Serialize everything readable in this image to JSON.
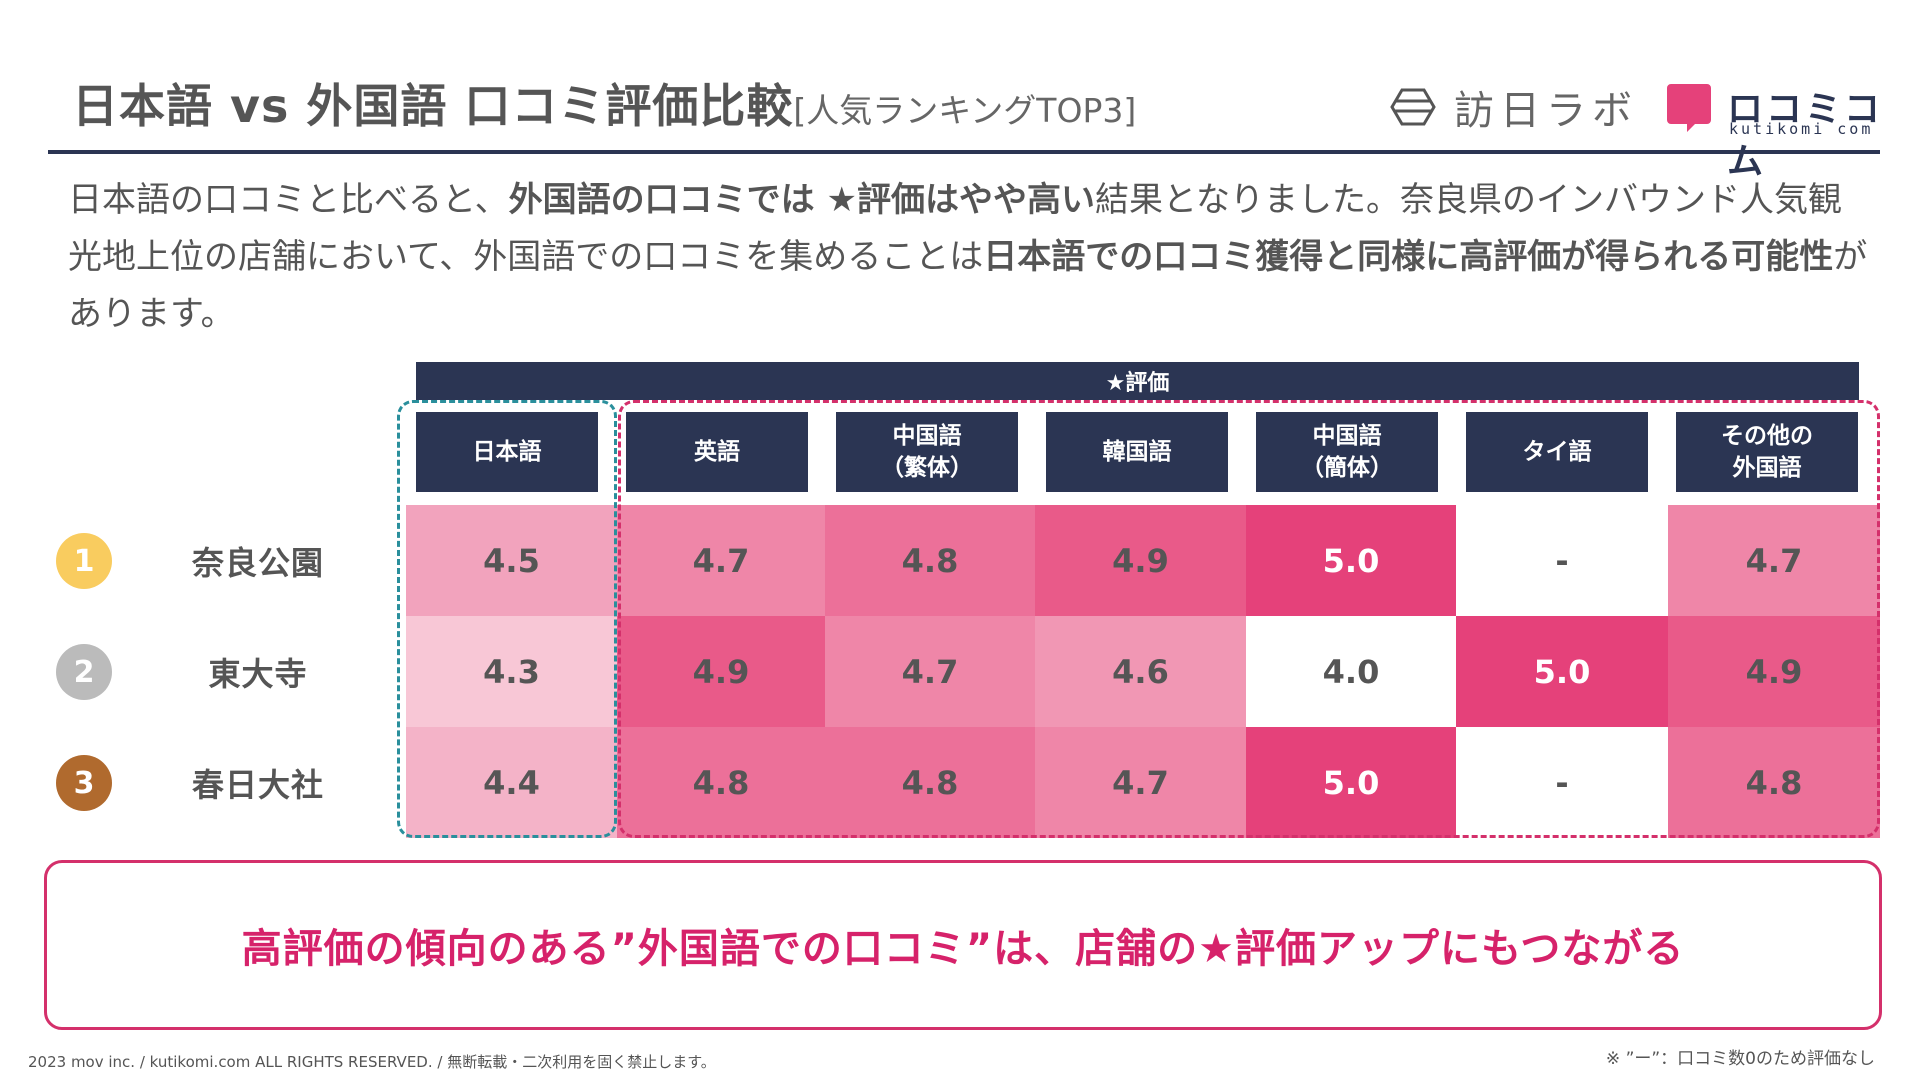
{
  "header": {
    "title": "日本語 vs 外国語 口コミ評価比較",
    "subtitle": "[人気ランキングTOP3]",
    "logo_houjin": "訪日ラボ",
    "logo_kuchikomi": "ロコミコム",
    "logo_kuchikomi_en": "kutikomi com"
  },
  "intro": {
    "p1": "日本語の口コミと比べると、",
    "b1": "外国語の口コミでは ★評価はやや高い",
    "p2": "結果となりました。奈良県のインバウンド人気観光地上位の店舗において、外国語での口コミを集めることは",
    "b2": "日本語での口コミ獲得と同様に高評価が得られる可能性",
    "p3": "があります。"
  },
  "table": {
    "group_header": "★評価",
    "columns": [
      "日本語",
      "英語",
      "中国語\n（繁体）",
      "韓国語",
      "中国語\n（簡体）",
      "タイ語",
      "その他の\n外国語"
    ],
    "rows": [
      {
        "rank": "1",
        "name": "奈良公園",
        "values": [
          "4.5",
          "4.7",
          "4.8",
          "4.9",
          "5.0",
          "-",
          "4.7"
        ]
      },
      {
        "rank": "2",
        "name": "東大寺",
        "values": [
          "4.3",
          "4.9",
          "4.7",
          "4.6",
          "4.0",
          "5.0",
          "4.9"
        ]
      },
      {
        "rank": "3",
        "name": "春日大社",
        "values": [
          "4.4",
          "4.8",
          "4.8",
          "4.7",
          "5.0",
          "-",
          "4.8"
        ]
      }
    ],
    "cell_colors": [
      [
        "#f2a3bd",
        "#ef86a8",
        "#ec7099",
        "#e95a89",
        "#e5417a",
        "#ffffff",
        "#ef86a8"
      ],
      [
        "#f8c7d6",
        "#e95a89",
        "#ef86a8",
        "#f197b4",
        "#ffffff",
        "#e5417a",
        "#e95a89"
      ],
      [
        "#f4b3c8",
        "#ec7099",
        "#ec7099",
        "#ef86a8",
        "#e5417a",
        "#ffffff",
        "#ec7099"
      ]
    ],
    "rank_colors": [
      "#f9cc5f",
      "#bbbbbb",
      "#b06a2e"
    ]
  },
  "callout": "高評価の傾向のある”外国語での口コミ”は、店舗の★評価アップにもつながる",
  "footer": {
    "left": "2023 mov inc. / kutikomi.com ALL RIGHTS RESERVED. / 無断転載・二次利用を固く禁止します。",
    "right": "※ ”ー”：口コミ数0のため評価なし"
  }
}
